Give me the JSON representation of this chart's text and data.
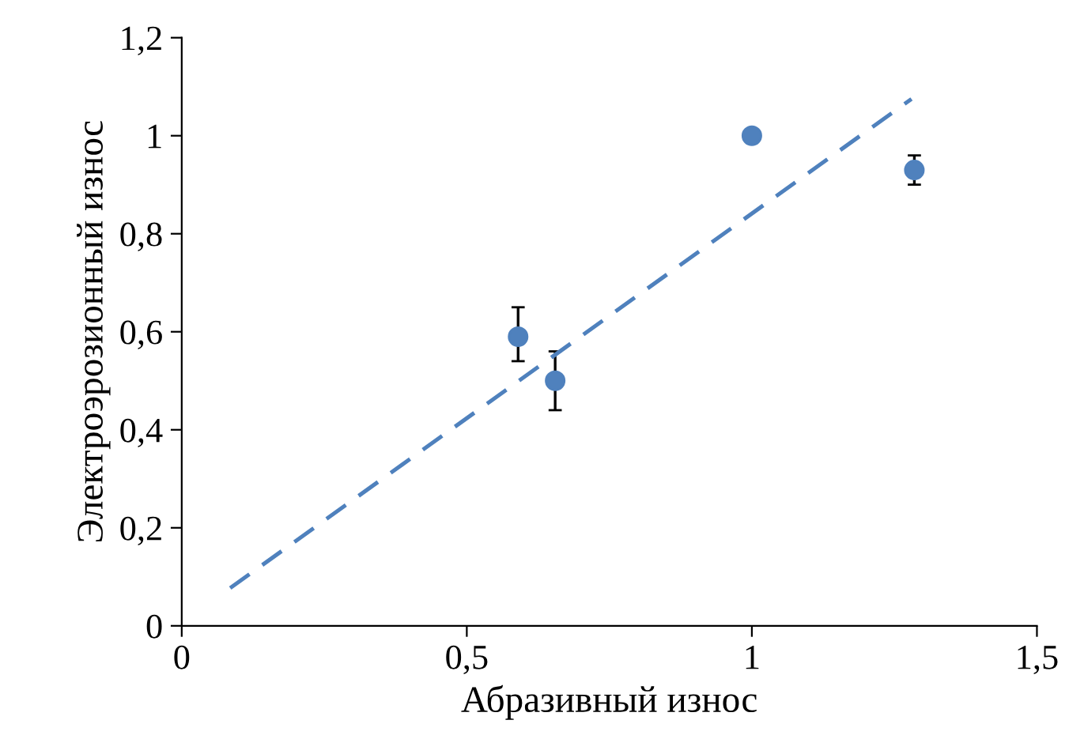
{
  "chart_data": {
    "type": "scatter",
    "xlabel": "Абразивный износ",
    "ylabel": "Электроэрозионный износ",
    "xlim": [
      0,
      1.5
    ],
    "ylim": [
      0,
      1.2
    ],
    "xticks": [
      {
        "value": 0,
        "label": "0"
      },
      {
        "value": 0.5,
        "label": "0,5"
      },
      {
        "value": 1,
        "label": "1"
      },
      {
        "value": 1.5,
        "label": "1,5"
      }
    ],
    "yticks": [
      {
        "value": 0,
        "label": "0"
      },
      {
        "value": 0.2,
        "label": "0,2"
      },
      {
        "value": 0.4,
        "label": "0,4"
      },
      {
        "value": 0.6,
        "label": "0,6"
      },
      {
        "value": 0.8,
        "label": "0,8"
      },
      {
        "value": 1,
        "label": "1"
      },
      {
        "value": 1.2,
        "label": "1,2"
      }
    ],
    "grid": false,
    "series": [
      {
        "color": "#4f81bd",
        "marker": "circle",
        "x": [
          0.59,
          0.655,
          1.0,
          1.285
        ],
        "values": [
          0.59,
          0.5,
          1.0,
          0.93
        ],
        "errors": [
          [
            0.54,
            0.65
          ],
          [
            0.44,
            0.56
          ],
          null,
          [
            0.9,
            0.96
          ]
        ]
      },
      {
        "type": "line",
        "color": "#4f81bd",
        "line_style": "dashed",
        "marker": "none",
        "x": [
          0.085,
          1.28
        ],
        "values": [
          0.077,
          1.075
        ]
      }
    ]
  }
}
